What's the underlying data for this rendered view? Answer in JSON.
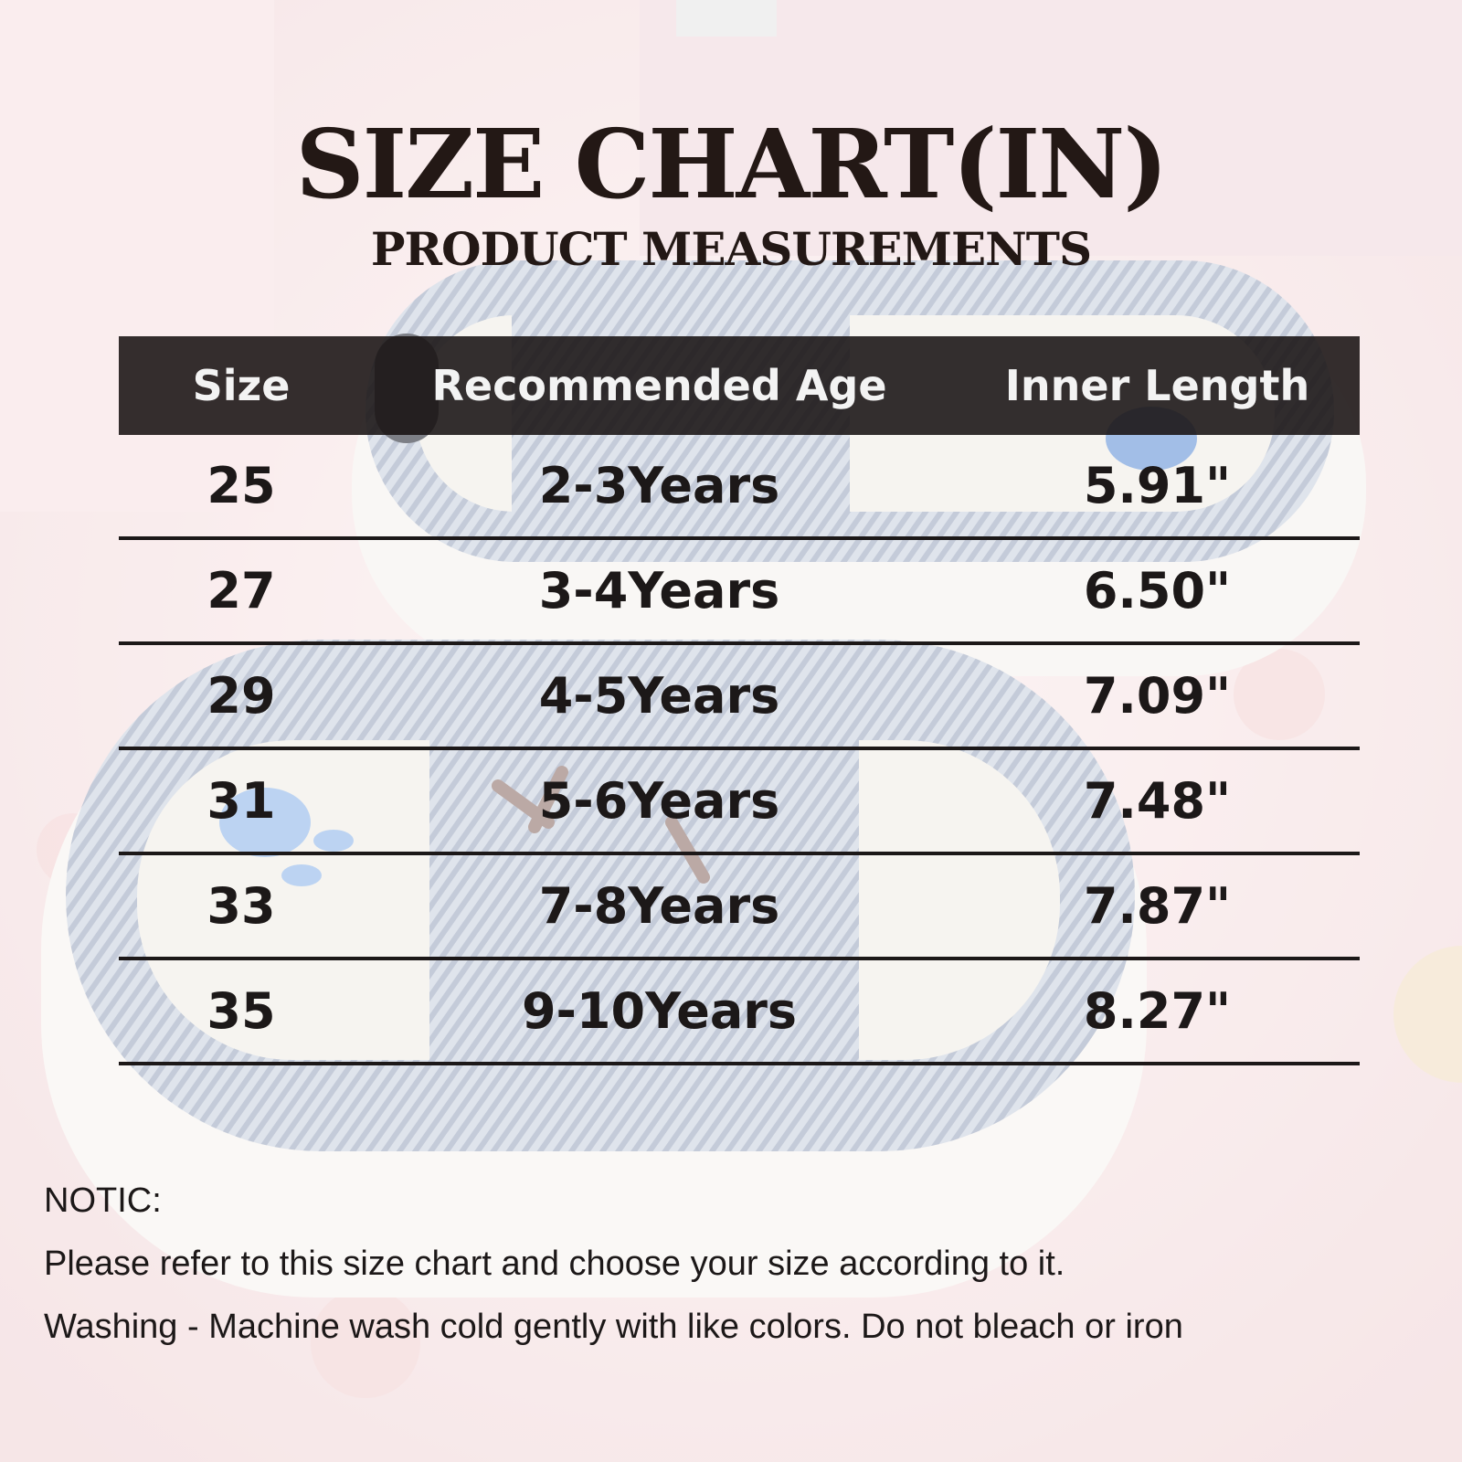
{
  "heading": {
    "title": "SIZE CHART(IN)",
    "subtitle": "PRODUCT MEASUREMENTS"
  },
  "table": {
    "headers": [
      "Size",
      "Recommended Age",
      "Inner Length"
    ],
    "rows": [
      {
        "size": "25",
        "age": "2-3Years",
        "length": "5.91\""
      },
      {
        "size": "27",
        "age": "3-4Years",
        "length": "6.50\""
      },
      {
        "size": "29",
        "age": "4-5Years",
        "length": "7.09\""
      },
      {
        "size": "31",
        "age": "5-6Years",
        "length": "7.48\""
      },
      {
        "size": "33",
        "age": "7-8Years",
        "length": "7.87\""
      },
      {
        "size": "35",
        "age": "9-10Years",
        "length": "8.27\""
      }
    ]
  },
  "notes": {
    "label": "NOTIC:",
    "lines": [
      "Please refer to this size chart and choose your size according to it.",
      "Washing - Machine wash cold gently with like colors. Do not bleach or iron"
    ]
  },
  "colors": {
    "header_bg": "#181212",
    "text": "#1c1818",
    "background": "#f6e4e4",
    "slipper": "#aab4c8"
  },
  "background_image": "slipper-photo"
}
